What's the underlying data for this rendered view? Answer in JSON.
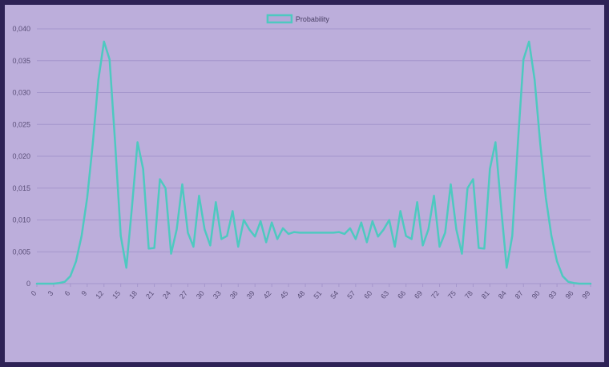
{
  "chart_data": {
    "type": "line",
    "legend": [
      {
        "label": "Probability",
        "color": "#4ec9c0"
      }
    ],
    "legend_position": "top-center",
    "ylim": [
      0,
      0.04
    ],
    "y_ticks": [
      "0",
      "0,005",
      "0,010",
      "0,015",
      "0,020",
      "0,025",
      "0,030",
      "0,035",
      "0,040"
    ],
    "x_ticks": [
      "0",
      "3",
      "6",
      "9",
      "12",
      "15",
      "18",
      "21",
      "24",
      "27",
      "30",
      "33",
      "36",
      "39",
      "42",
      "45",
      "48",
      "51",
      "54",
      "57",
      "60",
      "63",
      "66",
      "69",
      "72",
      "75",
      "78",
      "81",
      "84",
      "87",
      "90",
      "93",
      "96",
      "99"
    ],
    "x": [
      0,
      1,
      2,
      3,
      4,
      5,
      6,
      7,
      8,
      9,
      10,
      11,
      12,
      13,
      14,
      15,
      16,
      17,
      18,
      19,
      20,
      21,
      22,
      23,
      24,
      25,
      26,
      27,
      28,
      29,
      30,
      31,
      32,
      33,
      34,
      35,
      36,
      37,
      38,
      39,
      40,
      41,
      42,
      43,
      44,
      45,
      46,
      47,
      48,
      49,
      50,
      51,
      52,
      53,
      54,
      55,
      56,
      57,
      58,
      59,
      60,
      61,
      62,
      63,
      64,
      65,
      66,
      67,
      68,
      69,
      70,
      71,
      72,
      73,
      74,
      75,
      76,
      77,
      78,
      79,
      80,
      81,
      82,
      83,
      84,
      85,
      86,
      87,
      88,
      89,
      90,
      91,
      92,
      93,
      94,
      95,
      96,
      97,
      98,
      99
    ],
    "series": [
      {
        "name": "Probability",
        "color": "#4ec9c0",
        "values": [
          0.0,
          0.0,
          0.0,
          0.0,
          0.0001,
          0.0003,
          0.0012,
          0.0035,
          0.0075,
          0.0135,
          0.022,
          0.032,
          0.038,
          0.0352,
          0.022,
          0.0075,
          0.0025,
          0.012,
          0.0222,
          0.018,
          0.0055,
          0.0056,
          0.0164,
          0.015,
          0.0047,
          0.0085,
          0.0156,
          0.008,
          0.0058,
          0.0138,
          0.0085,
          0.006,
          0.0128,
          0.007,
          0.0075,
          0.0114,
          0.0058,
          0.01,
          0.0085,
          0.0074,
          0.0098,
          0.0065,
          0.0096,
          0.007,
          0.0087,
          0.0078,
          0.0081,
          0.008,
          0.008,
          0.008,
          0.008,
          0.008,
          0.008,
          0.008,
          0.0081,
          0.0078,
          0.0087,
          0.007,
          0.0096,
          0.0065,
          0.0098,
          0.0074,
          0.0085,
          0.01,
          0.0058,
          0.0114,
          0.0075,
          0.007,
          0.0128,
          0.006,
          0.0085,
          0.0138,
          0.0058,
          0.008,
          0.0156,
          0.0085,
          0.0047,
          0.015,
          0.0164,
          0.0056,
          0.0055,
          0.018,
          0.0222,
          0.012,
          0.0025,
          0.0075,
          0.022,
          0.0352,
          0.038,
          0.032,
          0.022,
          0.0135,
          0.0075,
          0.0035,
          0.0012,
          0.0003,
          0.0001,
          0.0,
          0.0,
          0.0
        ]
      }
    ],
    "grid": true
  }
}
